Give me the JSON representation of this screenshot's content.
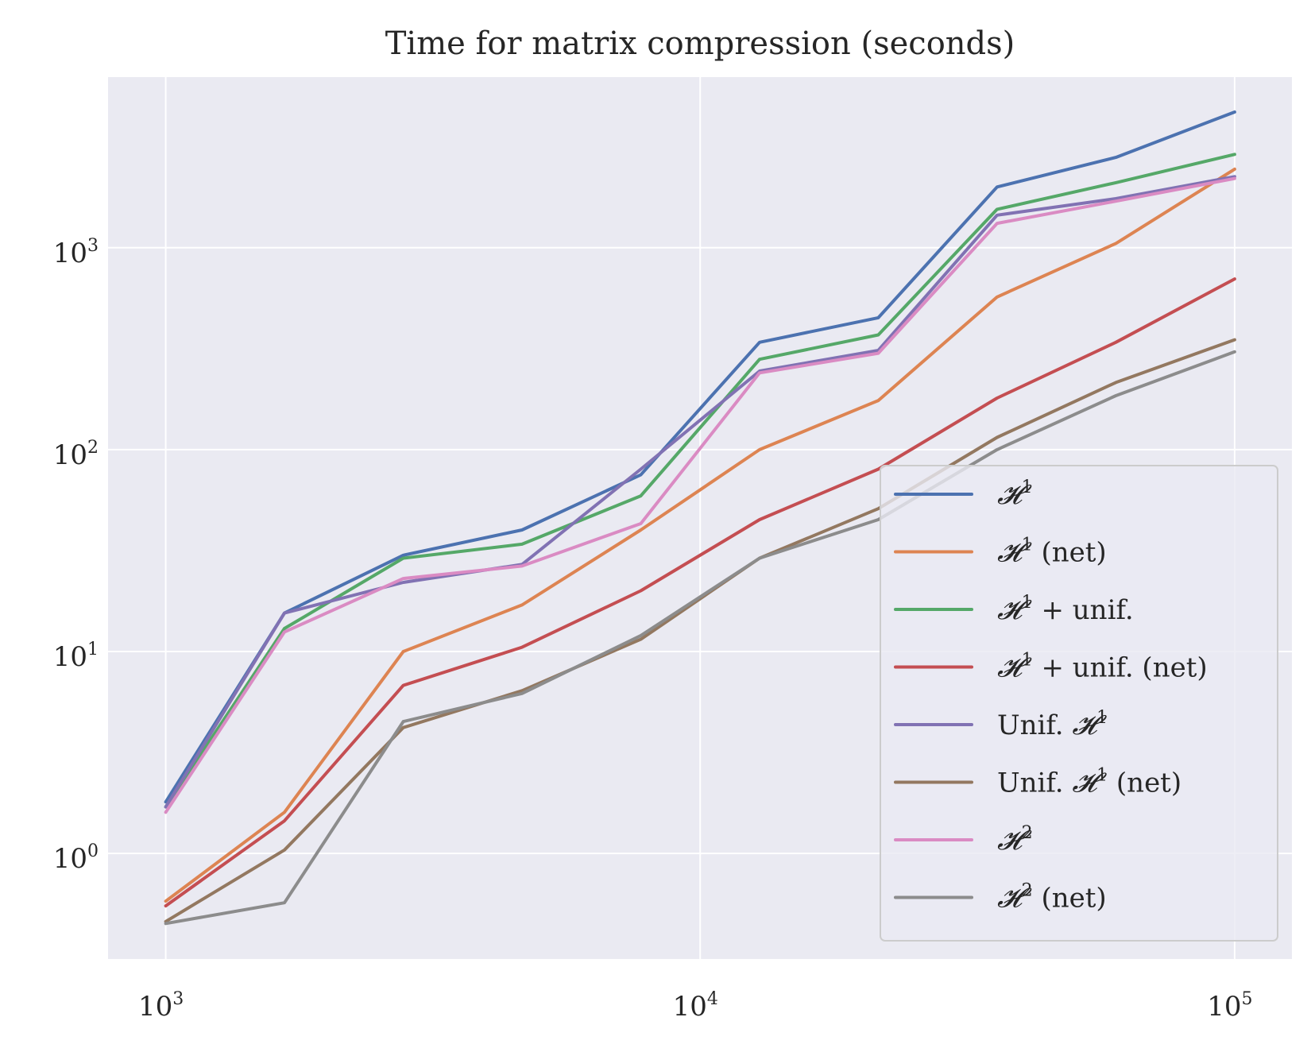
{
  "chart_data": {
    "type": "line",
    "title": "Time for matrix compression (seconds)",
    "xscale": "log",
    "yscale": "log",
    "xlim": [
      780,
      128000
    ],
    "ylim": [
      0.3,
      7000
    ],
    "grid": true,
    "legend_position": "lower right",
    "x_ticks": [
      {
        "value": 1000,
        "base": "10",
        "exp": "3"
      },
      {
        "value": 10000,
        "base": "10",
        "exp": "4"
      },
      {
        "value": 100000,
        "base": "10",
        "exp": "5"
      }
    ],
    "y_ticks": [
      {
        "value": 1,
        "base": "10",
        "exp": "0"
      },
      {
        "value": 10,
        "base": "10",
        "exp": "1"
      },
      {
        "value": 100,
        "base": "10",
        "exp": "2"
      },
      {
        "value": 1000,
        "base": "10",
        "exp": "3"
      }
    ],
    "x": [
      1000,
      1668,
      2783,
      4642,
      7743,
      12915,
      21544,
      35938,
      59948,
      100000
    ],
    "series": [
      {
        "name": "H1",
        "label_main": "𝓗",
        "label_sup": "1",
        "label_suffix": "",
        "color": "#4c72b0",
        "values": [
          1.8,
          15.5,
          30,
          40,
          75,
          340,
          450,
          2000,
          2800,
          4700
        ]
      },
      {
        "name": "H1 (net)",
        "label_main": "𝓗",
        "label_sup": "1",
        "label_suffix": " (net)",
        "color": "#dd8452",
        "values": [
          0.58,
          1.6,
          10,
          17,
          40,
          100,
          175,
          570,
          1050,
          2450
        ]
      },
      {
        "name": "H1 + unif.",
        "label_main": "𝓗",
        "label_sup": "1",
        "label_suffix": " +  unif.",
        "color": "#55a868",
        "values": [
          1.7,
          13,
          29,
          34,
          59,
          280,
          370,
          1550,
          2100,
          2900
        ]
      },
      {
        "name": "H1 + unif. (net)",
        "label_main": "𝓗",
        "label_sup": "1",
        "label_suffix": " +  unif. (net)",
        "color": "#c44e52",
        "values": [
          0.55,
          1.45,
          6.8,
          10.5,
          20,
          45,
          80,
          180,
          340,
          700
        ]
      },
      {
        "name": "Unif. H1",
        "label_prefix": "Unif. ",
        "label_main": "𝓗",
        "label_sup": "1",
        "label_suffix": "",
        "color": "#8172b3",
        "values": [
          1.7,
          15.5,
          22,
          27,
          80,
          245,
          310,
          1450,
          1750,
          2250
        ]
      },
      {
        "name": "Unif. H1 (net)",
        "label_prefix": "Unif. ",
        "label_main": "𝓗",
        "label_sup": "1",
        "label_suffix": " (net)",
        "color": "#937860",
        "values": [
          0.46,
          1.04,
          4.2,
          6.4,
          11.5,
          29,
          51,
          115,
          215,
          350
        ]
      },
      {
        "name": "H2",
        "label_main": "𝓗",
        "label_sup": "2",
        "label_suffix": "",
        "color": "#da8bc3",
        "values": [
          1.6,
          12.5,
          23,
          26.5,
          43,
          240,
          300,
          1320,
          1700,
          2200
        ]
      },
      {
        "name": "H2 (net)",
        "label_main": "𝓗",
        "label_sup": "2",
        "label_suffix": " (net)",
        "color": "#8c8c8c",
        "values": [
          0.45,
          0.57,
          4.5,
          6.2,
          12,
          29,
          45,
          100,
          185,
          305
        ]
      }
    ]
  }
}
